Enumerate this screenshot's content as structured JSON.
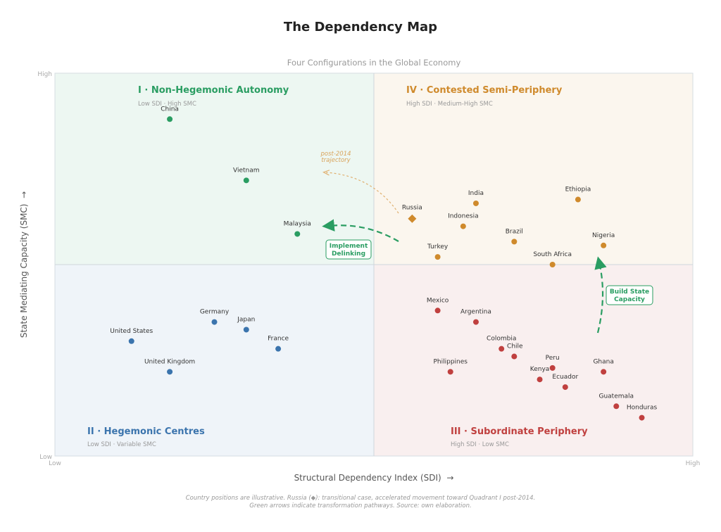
{
  "chart_data": {
    "type": "scatter",
    "title": "The Dependency Map",
    "subtitle": "Four Configurations in the Global Economy",
    "xlabel": "Structural Dependency Index (SDI)  →",
    "ylabel": "State Mediating Capacity (SMC)  →",
    "xlim": [
      0,
      10
    ],
    "ylim": [
      0,
      10
    ],
    "x_ticks": {
      "low": "Low",
      "high": "High"
    },
    "y_ticks": {
      "low": "Low",
      "high": "High"
    },
    "grid": false,
    "quadrants": [
      {
        "id": "I",
        "title": "I · Non-Hegemonic Autonomy",
        "subtitle": "Low SDI · High SMC",
        "color": "#2a9d62",
        "bg": "#edf7f2"
      },
      {
        "id": "II",
        "title": "II · Hegemonic Centres",
        "subtitle": "Low SDI · Variable SMC",
        "color": "#3b74ad",
        "bg": "#eff4f9"
      },
      {
        "id": "III",
        "title": "III · Subordinate Periphery",
        "subtitle": "High SDI · Low SMC",
        "color": "#c0403f",
        "bg": "#f9efef"
      },
      {
        "id": "IV",
        "title": "IV · Contested Semi-Periphery",
        "subtitle": "High SDI · Medium-High SMC",
        "color": "#cf8a2c",
        "bg": "#fbf6ee"
      }
    ],
    "points": [
      {
        "name": "China",
        "x": 1.8,
        "y": 8.8,
        "quadrant": "I"
      },
      {
        "name": "Vietnam",
        "x": 3.0,
        "y": 7.2,
        "quadrant": "I"
      },
      {
        "name": "Malaysia",
        "x": 3.8,
        "y": 5.8,
        "quadrant": "I"
      },
      {
        "name": "Germany",
        "x": 2.5,
        "y": 3.5,
        "quadrant": "II"
      },
      {
        "name": "Japan",
        "x": 3.0,
        "y": 3.3,
        "quadrant": "II"
      },
      {
        "name": "France",
        "x": 3.5,
        "y": 2.8,
        "quadrant": "II"
      },
      {
        "name": "United States",
        "x": 1.2,
        "y": 3.0,
        "quadrant": "II"
      },
      {
        "name": "United Kingdom",
        "x": 1.8,
        "y": 2.2,
        "quadrant": "II"
      },
      {
        "name": "Russia",
        "x": 5.6,
        "y": 6.2,
        "quadrant": "IV",
        "marker": "diamond"
      },
      {
        "name": "India",
        "x": 6.6,
        "y": 6.6,
        "quadrant": "IV"
      },
      {
        "name": "Indonesia",
        "x": 6.4,
        "y": 6.0,
        "quadrant": "IV"
      },
      {
        "name": "Ethiopia",
        "x": 8.2,
        "y": 6.7,
        "quadrant": "IV"
      },
      {
        "name": "Brazil",
        "x": 7.2,
        "y": 5.6,
        "quadrant": "IV"
      },
      {
        "name": "Nigeria",
        "x": 8.6,
        "y": 5.5,
        "quadrant": "IV"
      },
      {
        "name": "Turkey",
        "x": 6.0,
        "y": 5.2,
        "quadrant": "IV"
      },
      {
        "name": "South Africa",
        "x": 7.8,
        "y": 5.0,
        "quadrant": "IV"
      },
      {
        "name": "Mexico",
        "x": 6.0,
        "y": 3.8,
        "quadrant": "III"
      },
      {
        "name": "Argentina",
        "x": 6.6,
        "y": 3.5,
        "quadrant": "III"
      },
      {
        "name": "Colombia",
        "x": 7.0,
        "y": 2.8,
        "quadrant": "III"
      },
      {
        "name": "Chile",
        "x": 7.2,
        "y": 2.6,
        "quadrant": "III"
      },
      {
        "name": "Peru",
        "x": 7.8,
        "y": 2.3,
        "quadrant": "III"
      },
      {
        "name": "Philippines",
        "x": 6.2,
        "y": 2.2,
        "quadrant": "III"
      },
      {
        "name": "Ghana",
        "x": 8.6,
        "y": 2.2,
        "quadrant": "III"
      },
      {
        "name": "Kenya",
        "x": 7.6,
        "y": 2.0,
        "quadrant": "III"
      },
      {
        "name": "Ecuador",
        "x": 8.0,
        "y": 1.8,
        "quadrant": "III"
      },
      {
        "name": "Guatemala",
        "x": 8.8,
        "y": 1.3,
        "quadrant": "III"
      },
      {
        "name": "Honduras",
        "x": 9.2,
        "y": 1.0,
        "quadrant": "III"
      }
    ],
    "annotations": {
      "trajectory": "post-2014\ntrajectory",
      "trajectory_line1": "post-2014",
      "trajectory_line2": "trajectory",
      "delinking_line1": "Implement",
      "delinking_line2": "Delinking",
      "capacity_line1": "Build State",
      "capacity_line2": "Capacity"
    },
    "footnote_line1": "Country positions are illustrative. Russia (◆): transitional case, accelerated movement toward Quadrant I post-2014.",
    "footnote_line2": "Green arrows indicate transformation pathways. Source: own elaboration."
  }
}
